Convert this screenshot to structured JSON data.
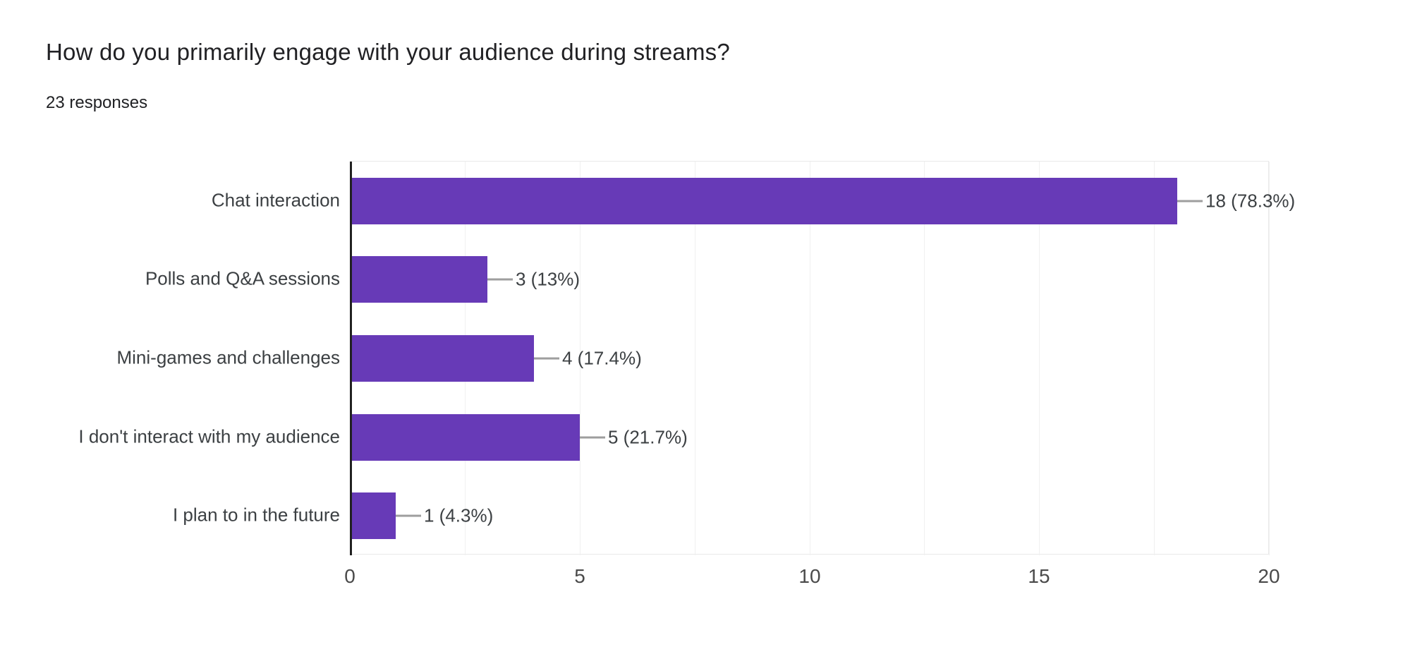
{
  "header": {
    "title": "How do you primarily engage with your audience during streams?",
    "responses_label": "23 responses"
  },
  "colors": {
    "bar": "#673ab7",
    "axis_line": "#212121",
    "gridline": "#f0f0f0",
    "plot_border": "#e9e9e9",
    "leader_line": "#9e9e9e",
    "title_text": "#212124",
    "label_text": "#3c4043",
    "tick_text": "#4a4a4a",
    "background": "#ffffff"
  },
  "chart_data": {
    "type": "bar",
    "orientation": "horizontal",
    "title": "How do you primarily engage with your audience during streams?",
    "subtitle": "23 responses",
    "categories": [
      "Chat interaction",
      "Polls and Q&A sessions",
      "Mini-games and challenges",
      "I don't interact with my audience",
      "I plan to in the future"
    ],
    "values": [
      18,
      3,
      4,
      5,
      1
    ],
    "value_labels": [
      "18 (78.3%)",
      "3 (13%)",
      "4 (17.4%)",
      "5 (21.7%)",
      "1 (4.3%)"
    ],
    "total_responses": 23,
    "xlabel": "",
    "ylabel": "",
    "xlim": [
      0,
      20
    ],
    "xticks": [
      0,
      5,
      10,
      15,
      20
    ],
    "gridline_step": 2.5,
    "grid": true,
    "legend": false
  }
}
